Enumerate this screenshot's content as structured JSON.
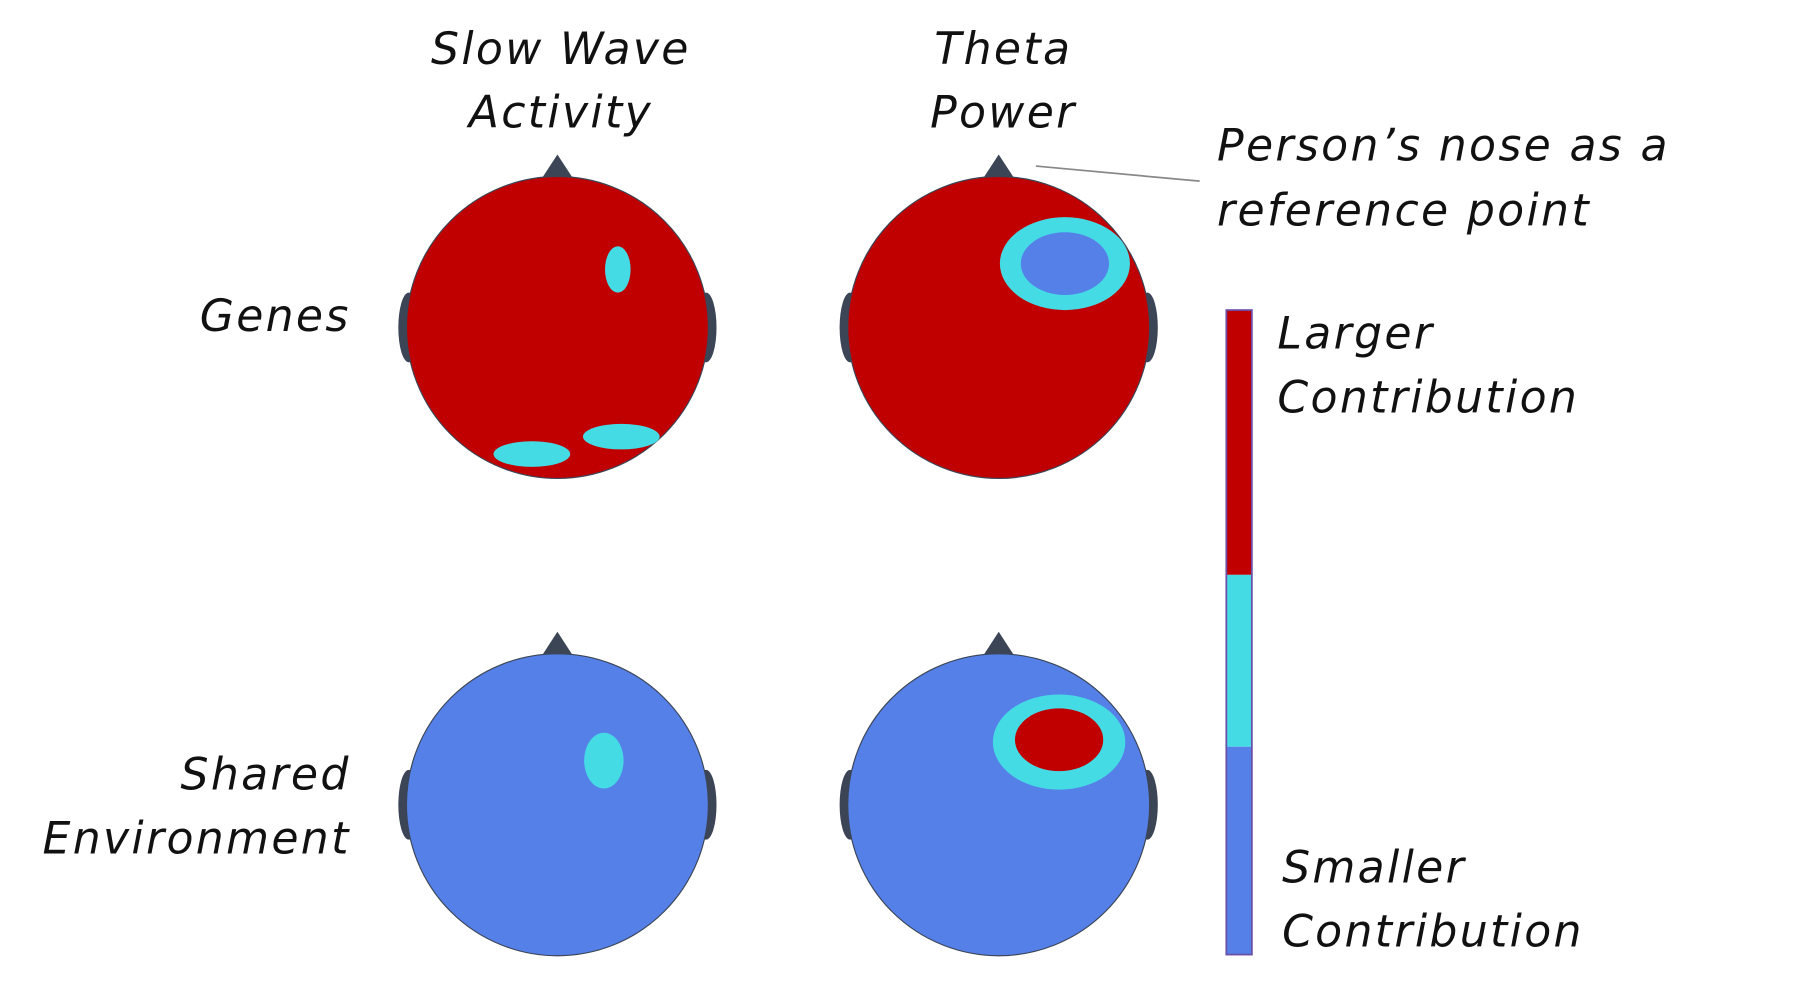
{
  "columns": [
    {
      "lines": [
        "Slow Wave",
        "Activity"
      ]
    },
    {
      "lines": [
        "Theta",
        "Power"
      ]
    }
  ],
  "rows": [
    {
      "lines": [
        "Genes"
      ]
    },
    {
      "lines": [
        "Shared",
        "Environment"
      ]
    }
  ],
  "annotation": {
    "lines": [
      "Person’s nose as a",
      "reference point"
    ]
  },
  "legend": {
    "top": {
      "lines": [
        "Larger",
        "Contribution"
      ]
    },
    "bottom": {
      "lines": [
        "Smaller",
        "Contribution"
      ]
    }
  }
}
